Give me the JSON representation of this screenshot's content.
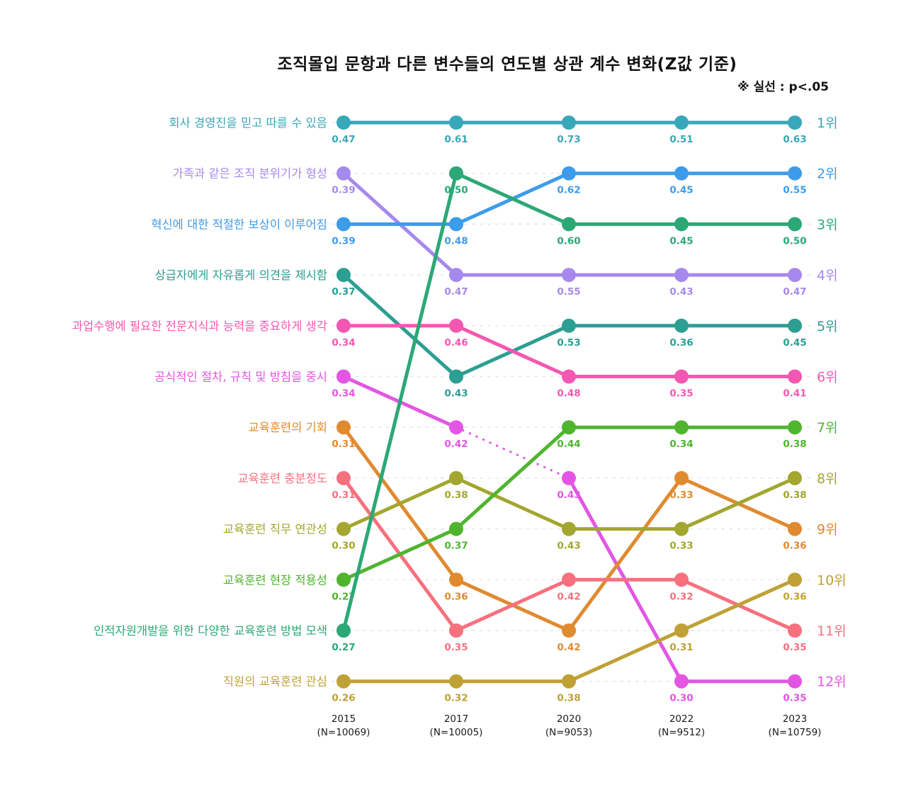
{
  "title": "조직몰입 문항과 다른 변수들의 연도별 상관 계수 변화(Z값 기준)",
  "legend_note": "※ 실선 : p<.05",
  "chart_data": {
    "type": "line",
    "subtype": "bump-chart",
    "grid": "dashed-horizontal-per-rank",
    "legend_position": "top-right-note",
    "x": [
      "2015",
      "2017",
      "2020",
      "2022",
      "2023"
    ],
    "x_sublabels": [
      "(N=10069)",
      "(N=10005)",
      "(N=9053)",
      "(N=9512)",
      "(N=10759)"
    ],
    "value_range_shown": [
      0.26,
      0.73
    ],
    "rank_labels": [
      "1위",
      "2위",
      "3위",
      "4위",
      "5위",
      "6위",
      "7위",
      "8위",
      "9위",
      "10위",
      "11위",
      "12위"
    ],
    "series": [
      {
        "name": "회사 경영진을 믿고 따를 수 있음",
        "color": "#38A7B9",
        "values": [
          0.47,
          0.61,
          0.73,
          0.51,
          0.63
        ],
        "ranks": [
          1,
          1,
          1,
          1,
          1
        ],
        "final_rank": 1,
        "dotted_segments": []
      },
      {
        "name": "가족과 같은 조직 분위기가 형성",
        "color": "#A689EC",
        "values": [
          0.39,
          0.47,
          0.55,
          0.43,
          0.47
        ],
        "ranks": [
          2,
          4,
          4,
          4,
          4
        ],
        "final_rank": 4,
        "dotted_segments": []
      },
      {
        "name": "혁신에 대한 적절한 보상이 이루어짐",
        "color": "#3D9CEA",
        "values": [
          0.39,
          0.48,
          0.62,
          0.45,
          0.55
        ],
        "ranks": [
          3,
          3,
          2,
          2,
          2
        ],
        "final_rank": 2,
        "dotted_segments": []
      },
      {
        "name": "상급자에게 자유롭게 의견을 제시함",
        "color": "#2C9E92",
        "values": [
          0.37,
          0.43,
          0.53,
          0.36,
          0.45
        ],
        "ranks": [
          4,
          6,
          5,
          5,
          5
        ],
        "final_rank": 5,
        "dotted_segments": []
      },
      {
        "name": "과업수행에 필요한 전문지식과 능력을 중요하게 생각",
        "color": "#F457B1",
        "values": [
          0.34,
          0.46,
          0.48,
          0.35,
          0.41
        ],
        "ranks": [
          5,
          5,
          6,
          6,
          6
        ],
        "final_rank": 6,
        "dotted_segments": []
      },
      {
        "name": "공식적인 절차, 규칙 및 방침을 중시",
        "color": "#E356E3",
        "values": [
          0.34,
          0.42,
          0.43,
          0.3,
          0.35
        ],
        "ranks": [
          6,
          7,
          8,
          12,
          12
        ],
        "final_rank": 12,
        "dotted_segments": [
          1
        ]
      },
      {
        "name": "교육훈련의 기회",
        "color": "#E08A2F",
        "values": [
          0.31,
          0.36,
          0.42,
          0.33,
          0.36
        ],
        "ranks": [
          7,
          10,
          11,
          8,
          9
        ],
        "final_rank": 9,
        "dotted_segments": []
      },
      {
        "name": "교육훈련 충분정도",
        "color": "#F7707E",
        "values": [
          0.31,
          0.35,
          0.42,
          0.32,
          0.35
        ],
        "ranks": [
          8,
          11,
          10,
          10,
          11
        ],
        "final_rank": 11,
        "dotted_segments": []
      },
      {
        "name": "교육훈련 직무 연관성",
        "color": "#A3A62F",
        "values": [
          0.3,
          0.38,
          0.43,
          0.33,
          0.38
        ],
        "ranks": [
          9,
          8,
          9,
          9,
          8
        ],
        "final_rank": 8,
        "dotted_segments": []
      },
      {
        "name": "교육훈련 현장 적용성",
        "color": "#4FB52F",
        "values": [
          0.27,
          0.37,
          0.44,
          0.34,
          0.38
        ],
        "ranks": [
          10,
          9,
          7,
          7,
          7
        ],
        "final_rank": 7,
        "dotted_segments": []
      },
      {
        "name": "인적자원개발을 위한 다양한 교육훈련 방법 모색",
        "color": "#2BA876",
        "values": [
          0.27,
          0.5,
          0.6,
          0.45,
          0.5
        ],
        "ranks": [
          11,
          2,
          3,
          3,
          3
        ],
        "final_rank": 3,
        "dotted_segments": []
      },
      {
        "name": "직원의 교육훈련 관심",
        "color": "#BFA135",
        "values": [
          0.26,
          0.32,
          0.38,
          0.31,
          0.36
        ],
        "ranks": [
          12,
          12,
          12,
          11,
          10
        ],
        "final_rank": 10,
        "dotted_segments": []
      }
    ]
  }
}
